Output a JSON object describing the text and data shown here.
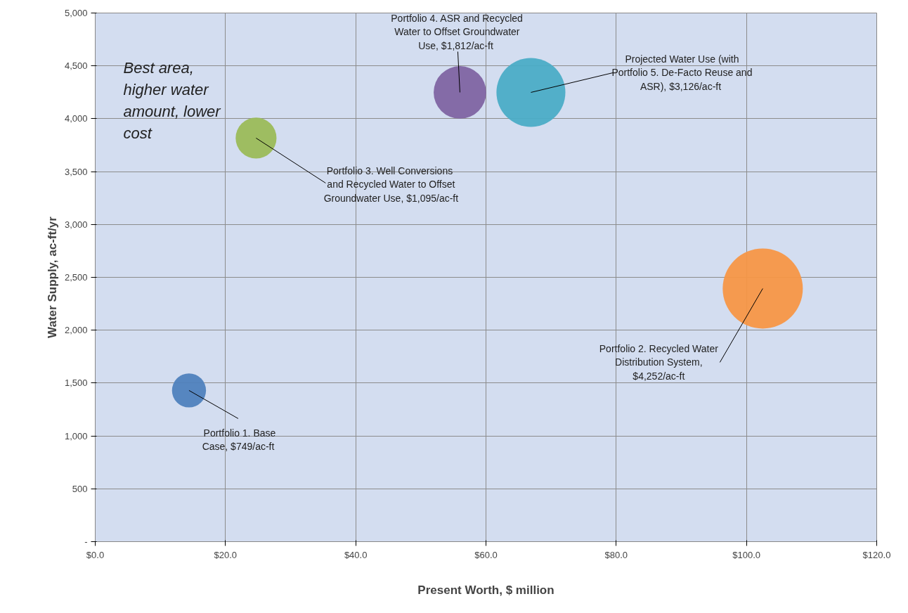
{
  "chart_data": {
    "type": "bubble",
    "xlabel": "Present Worth, $ million",
    "ylabel": "Water Supply, ac-ft/yr",
    "x": [
      14.4,
      24.7,
      56.0,
      66.9,
      102.5
    ],
    "values": [
      1430,
      3817,
      4249,
      4249,
      2394
    ],
    "sizes": [
      0.18,
      0.26,
      0.43,
      0.74,
      1
    ],
    "colors": [
      "#4f81bd",
      "#9bbb59",
      "#8064a2",
      "#4bacc6",
      "#f79646"
    ],
    "xlim": [
      0,
      120
    ],
    "ylim": [
      0,
      5000
    ],
    "xticks": [
      {
        "value": 0,
        "label": "$0.0"
      },
      {
        "value": 20,
        "label": "$20.0"
      },
      {
        "value": 40,
        "label": "$40.0"
      },
      {
        "value": 60,
        "label": "$60.0"
      },
      {
        "value": 80,
        "label": "$80.0"
      },
      {
        "value": 100,
        "label": "$100.0"
      },
      {
        "value": 120,
        "label": "$120.0"
      }
    ],
    "yticks": [
      {
        "value": 0,
        "label": "-"
      },
      500,
      {
        "value": 1000,
        "label": "1,000"
      },
      {
        "value": 1500,
        "label": "1,500"
      },
      {
        "value": 2000,
        "label": "2,000"
      },
      {
        "value": 2500,
        "label": "2,500"
      },
      {
        "value": 3000,
        "label": "3,000"
      },
      {
        "value": 3500,
        "label": "3,500"
      },
      {
        "value": 4000,
        "label": "4,000"
      },
      {
        "value": 4500,
        "label": "4,500"
      },
      {
        "value": 5000,
        "label": "5,000"
      }
    ],
    "grid": true,
    "legend": false,
    "marker": "circle",
    "annotations": [
      {
        "text": "Portfolio 1. Base Case,  $749/ac-ft",
        "x": 14.4,
        "y": 1430
      },
      {
        "text": "Portfolio 3.  Well Conversions and Recycled Water to Offset Groundwater Use, $1,095/ac-ft",
        "x": 24.7,
        "y": 3817
      },
      {
        "text": "Portfolio 4. ASR and Recycled Water to Offset Groundwater Use,  $1,812/ac-ft",
        "x": 56.0,
        "y": 4249
      },
      {
        "text": "Projected Water Use (with Portfolio 5. De-Facto Reuse and ASR),  $3,126/ac-ft",
        "x": 66.9,
        "y": 4249
      },
      {
        "text": "Portfolio 2. Recycled Water Distribution System, $4,252/ac-ft",
        "x": 102.5,
        "y": 2394
      },
      "Best area, higher water amount, lower cost"
    ]
  }
}
